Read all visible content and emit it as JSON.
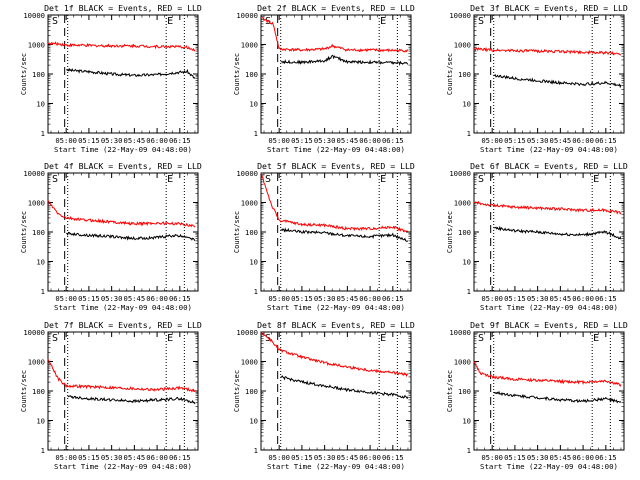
{
  "colors": {
    "events": "#000000",
    "lld": "#ff0000",
    "axes": "#000000",
    "background": "#ffffff"
  },
  "common": {
    "ylabel": "Counts/sec",
    "xlabel": "Start Time (22-May-09 04:48:00)",
    "y_scale": "log",
    "y_ticks": [
      "1",
      "10",
      "100",
      "1000",
      "10000"
    ],
    "ylim": [
      1,
      10000
    ],
    "x_ticks": [
      "05:00",
      "05:15",
      "05:30",
      "05:45",
      "06:00",
      "06:15"
    ],
    "xlim": [
      "04:48",
      "06:27"
    ],
    "marker_s": "S",
    "marker_e": "E",
    "dashed_line_time": "04:59",
    "dotted_line_times": [
      "05:01",
      "06:06",
      "06:18"
    ]
  },
  "chart_data": [
    {
      "type": "line",
      "title": "Det 1f BLACK = Events, RED = LLD",
      "series": [
        {
          "name": "Events",
          "x": [
            "05:00",
            "05:05",
            "05:15",
            "05:30",
            "05:45",
            "06:00",
            "06:10",
            "06:20",
            "06:25"
          ],
          "y": [
            140,
            130,
            120,
            100,
            90,
            95,
            110,
            120,
            70
          ]
        },
        {
          "name": "LLD",
          "x": [
            "04:48",
            "04:55",
            "04:58",
            "05:00",
            "05:05",
            "05:15",
            "05:30",
            "05:45",
            "06:00",
            "06:10",
            "06:20",
            "06:25"
          ],
          "y": [
            1100,
            1050,
            1000,
            950,
            950,
            920,
            900,
            900,
            850,
            850,
            800,
            600
          ]
        }
      ]
    },
    {
      "type": "line",
      "title": "Det 2f BLACK = Events, RED = LLD",
      "series": [
        {
          "name": "Events",
          "x": [
            "05:01",
            "05:15",
            "05:30",
            "05:35",
            "05:45",
            "06:00",
            "06:15",
            "06:25"
          ],
          "y": [
            260,
            250,
            280,
            400,
            260,
            250,
            240,
            230
          ]
        },
        {
          "name": "LLD",
          "x": [
            "04:48",
            "04:56",
            "05:00",
            "05:15",
            "05:30",
            "05:35",
            "05:45",
            "06:00",
            "06:15",
            "06:25"
          ],
          "y": [
            8000,
            5000,
            700,
            650,
            700,
            900,
            650,
            650,
            630,
            620
          ]
        }
      ]
    },
    {
      "type": "line",
      "title": "Det 3f BLACK = Events, RED = LLD",
      "series": [
        {
          "name": "Events",
          "x": [
            "05:01",
            "05:15",
            "05:30",
            "05:45",
            "06:00",
            "06:15",
            "06:25"
          ],
          "y": [
            90,
            70,
            60,
            50,
            45,
            50,
            40
          ]
        },
        {
          "name": "LLD",
          "x": [
            "04:48",
            "05:00",
            "05:15",
            "05:30",
            "05:45",
            "06:00",
            "06:15",
            "06:25"
          ],
          "y": [
            700,
            650,
            620,
            600,
            580,
            550,
            520,
            480
          ]
        }
      ]
    },
    {
      "type": "line",
      "title": "Det 4f BLACK = Events, RED = LLD",
      "series": [
        {
          "name": "Events",
          "x": [
            "05:00",
            "05:10",
            "05:20",
            "05:30",
            "05:45",
            "06:00",
            "06:10",
            "06:20",
            "06:25"
          ],
          "y": [
            90,
            80,
            75,
            70,
            60,
            65,
            75,
            70,
            55
          ]
        },
        {
          "name": "LLD",
          "x": [
            "04:48",
            "04:50",
            "04:55",
            "05:00",
            "05:10",
            "05:20",
            "05:30",
            "05:45",
            "06:00",
            "06:15",
            "06:25"
          ],
          "y": [
            1200,
            800,
            400,
            300,
            260,
            240,
            220,
            190,
            200,
            190,
            160
          ]
        }
      ]
    },
    {
      "type": "line",
      "title": "Det 5f BLACK = Events, RED = LLD",
      "series": [
        {
          "name": "Events",
          "x": [
            "05:01",
            "05:15",
            "05:30",
            "05:45",
            "06:00",
            "06:15",
            "06:25"
          ],
          "y": [
            120,
            100,
            95,
            75,
            70,
            80,
            50
          ]
        },
        {
          "name": "LLD",
          "x": [
            "04:48",
            "04:55",
            "05:00",
            "05:15",
            "05:30",
            "05:45",
            "06:00",
            "06:15",
            "06:25"
          ],
          "y": [
            10000,
            800,
            250,
            180,
            170,
            130,
            130,
            150,
            100
          ]
        }
      ]
    },
    {
      "type": "line",
      "title": "Det 6f BLACK = Events, RED = LLD",
      "series": [
        {
          "name": "Events",
          "x": [
            "05:01",
            "05:15",
            "05:30",
            "05:45",
            "06:00",
            "06:15",
            "06:25"
          ],
          "y": [
            140,
            110,
            100,
            85,
            80,
            100,
            60
          ]
        },
        {
          "name": "LLD",
          "x": [
            "04:48",
            "05:00",
            "05:15",
            "05:30",
            "05:45",
            "06:00",
            "06:15",
            "06:25"
          ],
          "y": [
            1000,
            800,
            700,
            650,
            600,
            550,
            550,
            450
          ]
        }
      ]
    },
    {
      "type": "line",
      "title": "Det 7f BLACK = Events, RED = LLD",
      "series": [
        {
          "name": "Events",
          "x": [
            "05:01",
            "05:15",
            "05:30",
            "05:45",
            "06:00",
            "06:15",
            "06:25"
          ],
          "y": [
            65,
            55,
            50,
            45,
            50,
            55,
            40
          ]
        },
        {
          "name": "LLD",
          "x": [
            "04:48",
            "04:55",
            "05:00",
            "05:15",
            "05:30",
            "05:45",
            "06:00",
            "06:15",
            "06:25"
          ],
          "y": [
            1200,
            250,
            150,
            140,
            130,
            120,
            110,
            130,
            100
          ]
        }
      ]
    },
    {
      "type": "line",
      "title": "Det 8f BLACK = Events, RED = LLD",
      "series": [
        {
          "name": "Events",
          "x": [
            "05:01",
            "05:15",
            "05:30",
            "05:45",
            "06:00",
            "06:15",
            "06:25"
          ],
          "y": [
            300,
            200,
            150,
            110,
            90,
            75,
            60
          ]
        },
        {
          "name": "LLD",
          "x": [
            "04:48",
            "04:55",
            "05:00",
            "05:15",
            "05:30",
            "05:45",
            "06:00",
            "06:15",
            "06:25"
          ],
          "y": [
            10000,
            5000,
            2500,
            1400,
            900,
            650,
            500,
            420,
            350
          ]
        }
      ]
    },
    {
      "type": "line",
      "title": "Det 9f BLACK = Events, RED = LLD",
      "series": [
        {
          "name": "Events",
          "x": [
            "05:01",
            "05:15",
            "05:30",
            "05:45",
            "06:00",
            "06:15",
            "06:25"
          ],
          "y": [
            90,
            70,
            60,
            50,
            45,
            55,
            40
          ]
        },
        {
          "name": "LLD",
          "x": [
            "04:48",
            "04:52",
            "05:00",
            "05:15",
            "05:30",
            "05:45",
            "06:00",
            "06:15",
            "06:25"
          ],
          "y": [
            1000,
            400,
            300,
            250,
            230,
            210,
            200,
            220,
            160
          ]
        }
      ]
    }
  ]
}
